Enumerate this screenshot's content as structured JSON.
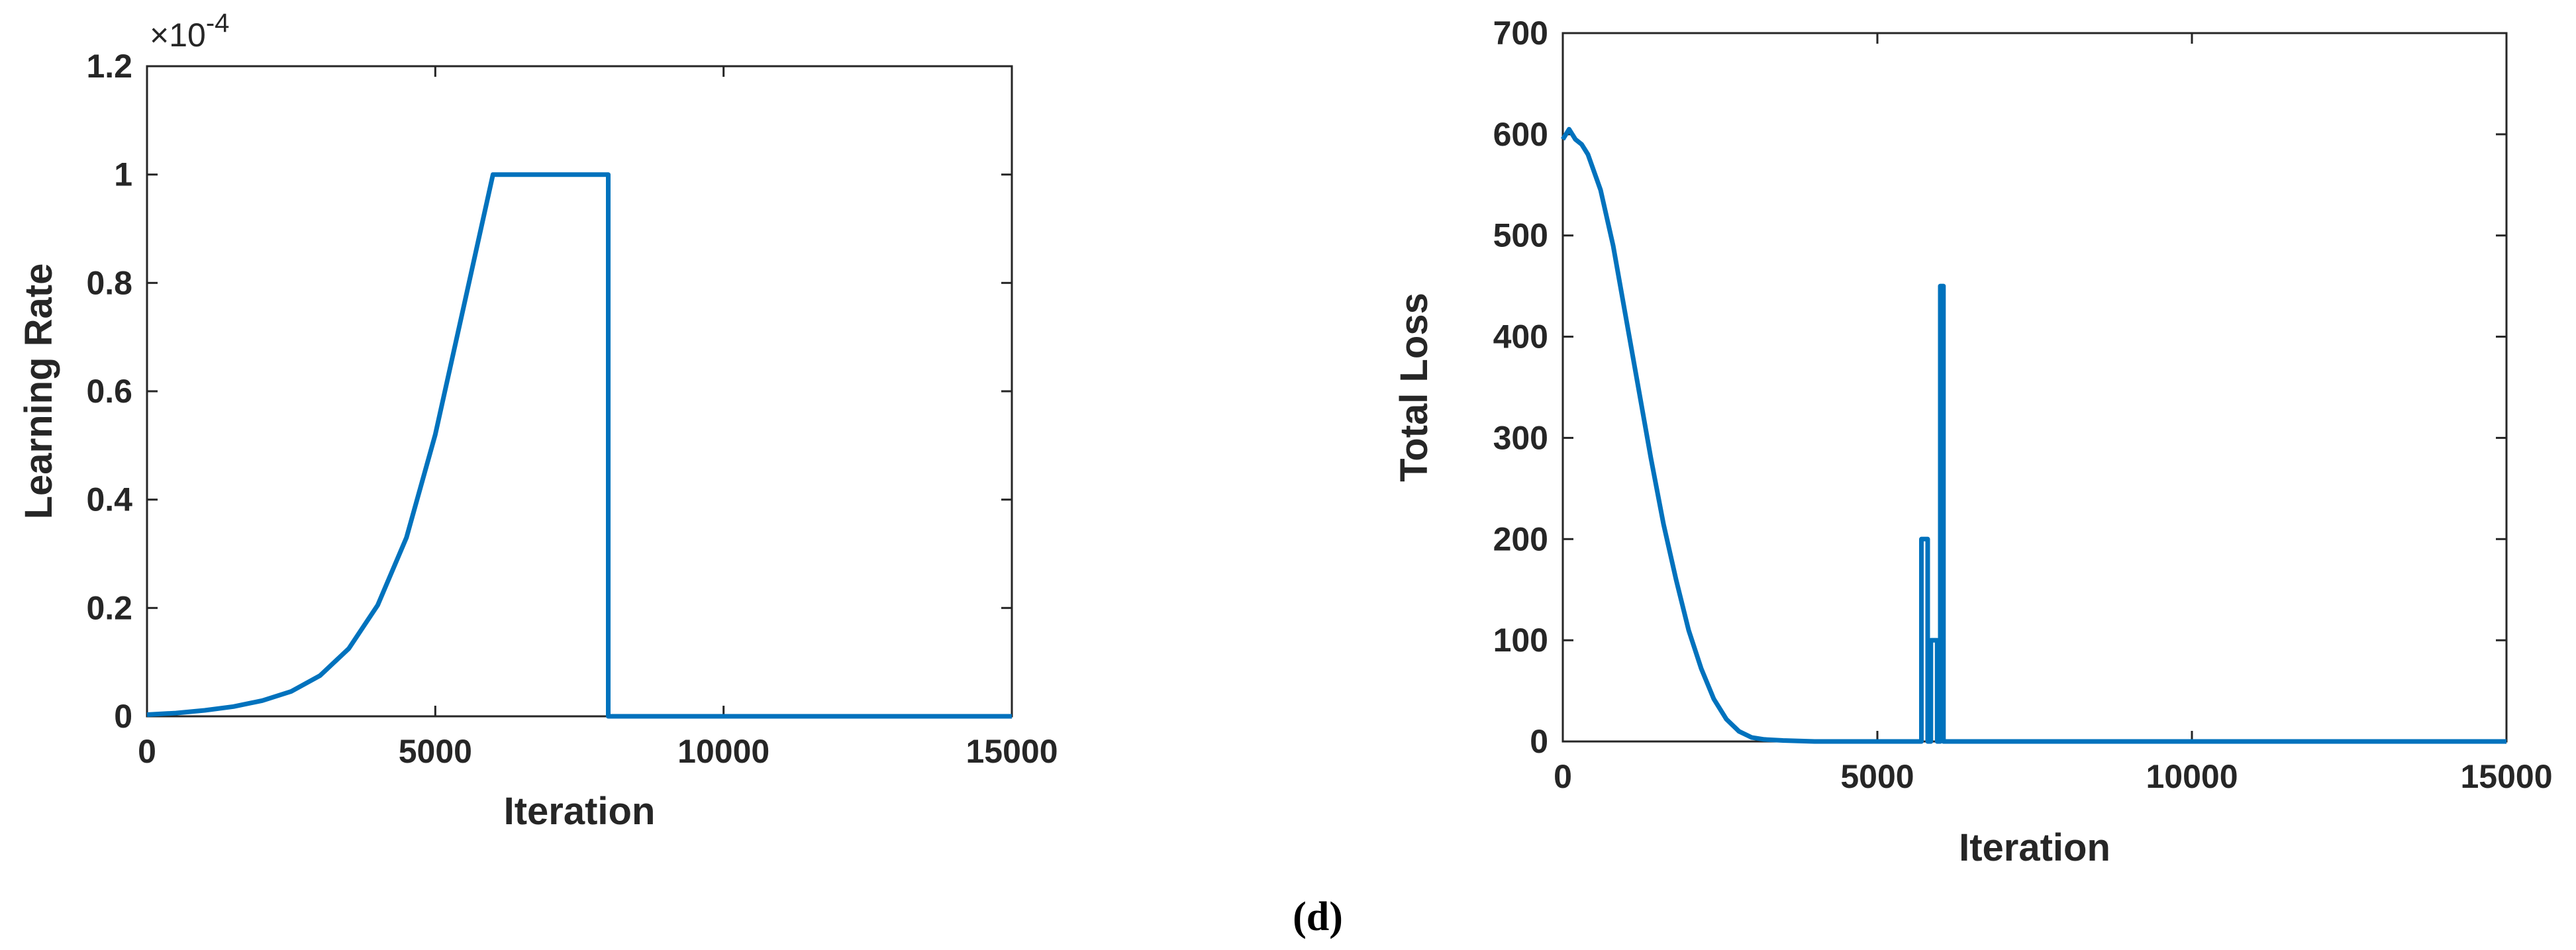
{
  "colors": {
    "series": "#0072bd",
    "axis": "#262626",
    "background": "#ffffff"
  },
  "panel_label": "(d)",
  "chart_data": [
    {
      "type": "line",
      "title": "",
      "xlabel": "Iteration",
      "ylabel": "Learning Rate",
      "xlim": [
        0,
        15000
      ],
      "ylim": [
        0,
        0.00012
      ],
      "x_ticks": [
        0,
        5000,
        10000,
        15000
      ],
      "x_tick_labels": [
        "0",
        "5000",
        "10000",
        "15000"
      ],
      "y_ticks": [
        0,
        2e-05,
        4e-05,
        6e-05,
        8e-05,
        0.0001,
        0.00012
      ],
      "y_tick_labels": [
        "0",
        "0.2",
        "0.4",
        "0.6",
        "0.8",
        "1",
        "1.2"
      ],
      "y_exponent_label": "×10",
      "y_exponent_power": "-4",
      "grid": false,
      "series": [
        {
          "x": [
            0,
            500,
            1000,
            1500,
            2000,
            2500,
            3000,
            3500,
            4000,
            4500,
            5000,
            5500,
            6000,
            8000,
            8000,
            15000
          ],
          "y": [
            3e-07,
            6e-07,
            1.1e-06,
            1.8e-06,
            2.9e-06,
            4.6e-06,
            7.5e-06,
            1.25e-05,
            2.05e-05,
            3.3e-05,
            5.2e-05,
            7.6e-05,
            0.0001,
            0.0001,
            0,
            0
          ]
        }
      ]
    },
    {
      "type": "line",
      "title": "",
      "xlabel": "Iteration",
      "ylabel": "Total Loss",
      "xlim": [
        0,
        15000
      ],
      "ylim": [
        0,
        700
      ],
      "x_ticks": [
        0,
        5000,
        10000,
        15000
      ],
      "x_tick_labels": [
        "0",
        "5000",
        "10000",
        "15000"
      ],
      "y_ticks": [
        0,
        100,
        200,
        300,
        400,
        500,
        600,
        700
      ],
      "y_tick_labels": [
        "0",
        "100",
        "200",
        "300",
        "400",
        "500",
        "600",
        "700"
      ],
      "grid": false,
      "series": [
        {
          "x": [
            0,
            100,
            200,
            300,
            400,
            600,
            800,
            1000,
            1200,
            1400,
            1600,
            1800,
            2000,
            2200,
            2400,
            2600,
            2800,
            3000,
            3200,
            3500,
            4000,
            5000,
            5700,
            5700,
            5800,
            5800,
            5850,
            5850,
            5950,
            5950,
            6000,
            6000,
            6050,
            6050,
            15000
          ],
          "y": [
            595,
            605,
            595,
            590,
            580,
            545,
            490,
            420,
            350,
            280,
            215,
            160,
            110,
            72,
            42,
            22,
            10,
            4,
            2,
            1,
            0,
            0,
            0,
            200,
            200,
            0,
            0,
            100,
            100,
            0,
            0,
            450,
            450,
            0,
            0
          ]
        }
      ]
    }
  ]
}
